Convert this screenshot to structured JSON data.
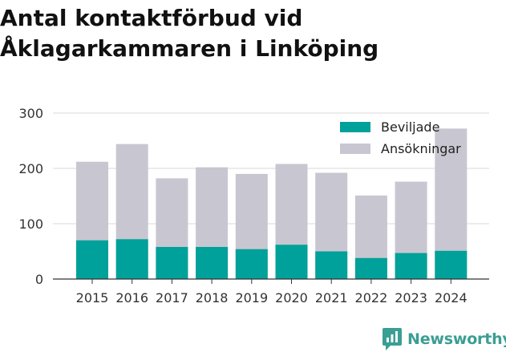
{
  "chart_data": {
    "type": "bar",
    "stacked": true,
    "title": "Antal kontaktförbud vid Åklagarkammaren i Linköping",
    "categories": [
      "2015",
      "2016",
      "2017",
      "2018",
      "2019",
      "2020",
      "2021",
      "2022",
      "2023",
      "2024"
    ],
    "series": [
      {
        "name": "Beviljade",
        "color": "#00a19a",
        "values": [
          70,
          72,
          58,
          58,
          54,
          62,
          50,
          38,
          47,
          51
        ]
      },
      {
        "name": "Ansökningar",
        "color": "#c8c7d1",
        "values": [
          212,
          244,
          182,
          202,
          190,
          208,
          192,
          151,
          176,
          272
        ]
      }
    ],
    "ylim": [
      0,
      300
    ],
    "yticks": [
      0,
      100,
      200,
      300
    ],
    "grid": true,
    "legend": "top-right"
  },
  "brand": {
    "name": "Newsworthy",
    "color": "#3a9e93"
  }
}
